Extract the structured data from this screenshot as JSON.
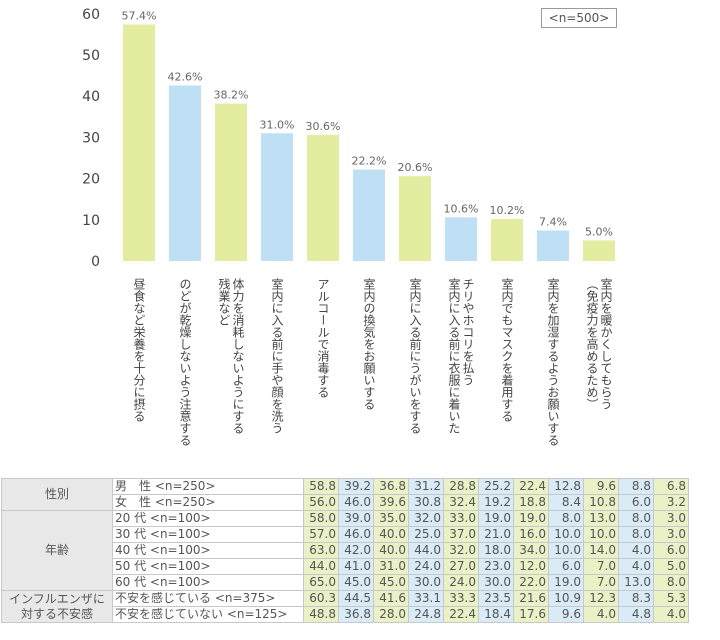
{
  "chart_data": {
    "type": "bar",
    "note": "<n=500>",
    "ylim": [
      0,
      60
    ],
    "yticks": [
      0,
      10,
      20,
      30,
      40,
      50,
      60
    ],
    "grid": false,
    "categories": [
      "昼食など栄養を十分に摂る",
      "のどが乾燥しないよう注意する",
      "残業など\n体力を消耗しないようにする",
      "室内に入る前に手や顔を洗う",
      "アルコールで消毒する",
      "室内の換気をお願いする",
      "室内に入る前にうがいをする",
      "室内に入る前に衣服に着いた\nチリやホコリを払う",
      "室内でもマスクを着用する",
      "室内を加湿するようお願いする",
      "（免疫力を高めるため）\n室内を暖かくしてもらう"
    ],
    "values": [
      57.4,
      42.6,
      38.2,
      31.0,
      30.6,
      22.2,
      20.6,
      10.6,
      10.2,
      7.4,
      5.0
    ],
    "value_labels": [
      "57.4%",
      "42.6%",
      "38.2%",
      "31.0%",
      "30.6%",
      "22.2%",
      "20.6%",
      "10.6%",
      "10.2%",
      "7.4%",
      "5.0%"
    ],
    "bar_colors": [
      "#e3ec9f",
      "#bfe0f4",
      "#e3ec9f",
      "#bfe0f4",
      "#e3ec9f",
      "#bfe0f4",
      "#e3ec9f",
      "#bfe0f4",
      "#e3ec9f",
      "#bfe0f4",
      "#e3ec9f"
    ],
    "breakdown_table": {
      "groups": [
        {
          "label": "性別",
          "rows": [
            {
              "label": "男　性 <n=250>",
              "values": [
                "58.8",
                "39.2",
                "36.8",
                "31.2",
                "28.8",
                "25.2",
                "22.4",
                "12.8",
                "9.6",
                "8.8",
                "6.8"
              ]
            },
            {
              "label": "女　性 <n=250>",
              "values": [
                "56.0",
                "46.0",
                "39.6",
                "30.8",
                "32.4",
                "19.2",
                "18.8",
                "8.4",
                "10.8",
                "6.0",
                "3.2"
              ]
            }
          ]
        },
        {
          "label": "年齢",
          "rows": [
            {
              "label": "20 代 <n=100>",
              "values": [
                "58.0",
                "39.0",
                "35.0",
                "32.0",
                "33.0",
                "19.0",
                "19.0",
                "8.0",
                "13.0",
                "8.0",
                "3.0"
              ]
            },
            {
              "label": "30 代 <n=100>",
              "values": [
                "57.0",
                "46.0",
                "40.0",
                "25.0",
                "37.0",
                "21.0",
                "16.0",
                "10.0",
                "10.0",
                "8.0",
                "3.0"
              ]
            },
            {
              "label": "40 代 <n=100>",
              "values": [
                "63.0",
                "42.0",
                "40.0",
                "44.0",
                "32.0",
                "18.0",
                "34.0",
                "10.0",
                "14.0",
                "4.0",
                "6.0"
              ]
            },
            {
              "label": "50 代 <n=100>",
              "values": [
                "44.0",
                "41.0",
                "31.0",
                "24.0",
                "27.0",
                "23.0",
                "12.0",
                "6.0",
                "7.0",
                "4.0",
                "5.0"
              ]
            },
            {
              "label": "60 代 <n=100>",
              "values": [
                "65.0",
                "45.0",
                "45.0",
                "30.0",
                "24.0",
                "30.0",
                "22.0",
                "19.0",
                "7.0",
                "13.0",
                "8.0"
              ]
            }
          ]
        },
        {
          "label": "インフルエンザに\n対する不安感",
          "rows": [
            {
              "label": "不安を感じている <n=375>",
              "values": [
                "60.3",
                "44.5",
                "41.6",
                "33.1",
                "33.3",
                "23.5",
                "21.6",
                "10.9",
                "12.3",
                "8.3",
                "5.3"
              ]
            },
            {
              "label": "不安を感じていない <n=125>",
              "values": [
                "48.8",
                "36.8",
                "28.0",
                "24.8",
                "22.4",
                "18.4",
                "17.6",
                "9.6",
                "4.0",
                "4.8",
                "4.0"
              ]
            }
          ]
        }
      ]
    }
  }
}
